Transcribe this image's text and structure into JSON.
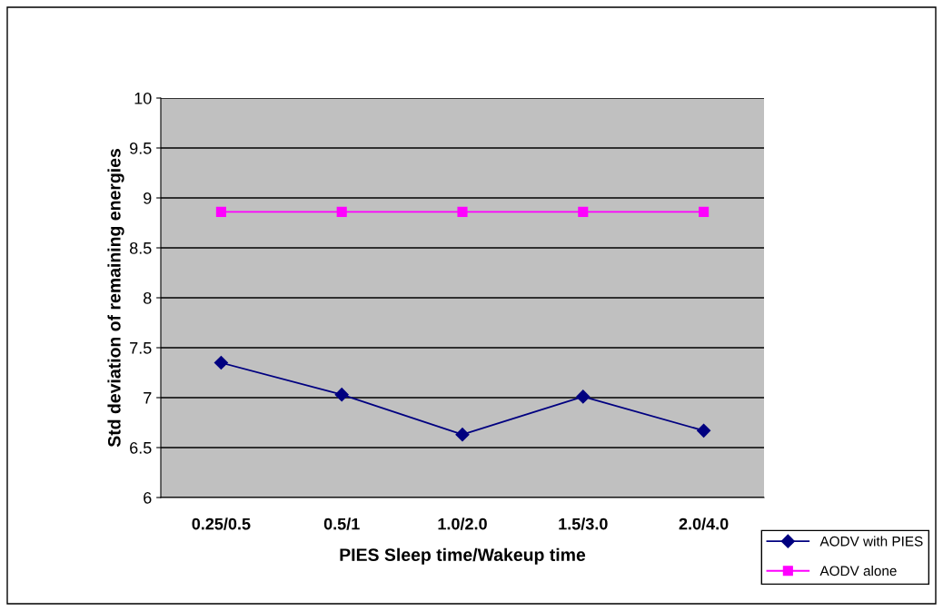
{
  "chart_data": {
    "type": "line",
    "xlabel": "PIES Sleep time/Wakeup time",
    "ylabel": "Std deviation of remaining energies",
    "categories": [
      "0.25/0.5",
      "0.5/1",
      "1.0/2.0",
      "1.5/3.0",
      "2.0/4.0"
    ],
    "series": [
      {
        "name": "AODV with PIES",
        "color": "#000080",
        "marker": "diamond",
        "values": [
          7.35,
          7.03,
          6.63,
          7.01,
          6.67
        ]
      },
      {
        "name": "AODV alone",
        "color": "#ff00ff",
        "marker": "square",
        "values": [
          8.86,
          8.86,
          8.86,
          8.86,
          8.86
        ]
      }
    ],
    "ylim": [
      6,
      10
    ],
    "yticks": [
      6,
      6.5,
      7,
      7.5,
      8,
      8.5,
      9,
      9.5,
      10
    ],
    "grid": "y",
    "legend": "bottom right",
    "line_style": "solid"
  }
}
